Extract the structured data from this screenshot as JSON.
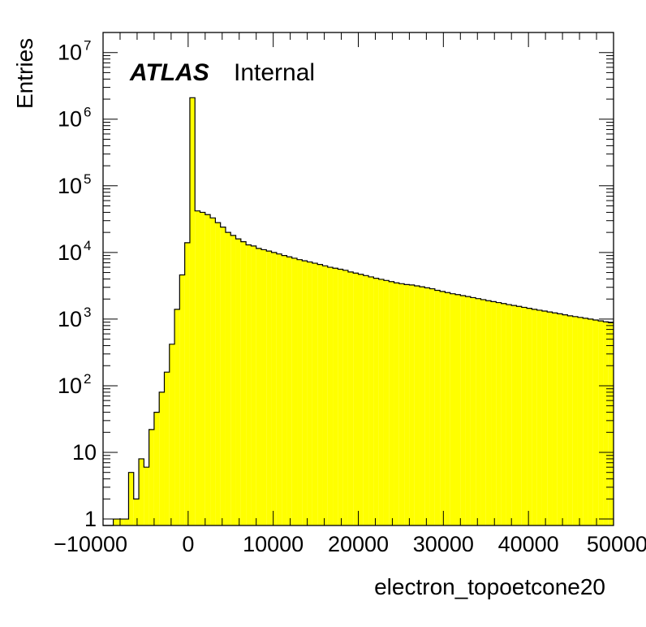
{
  "chart_data": {
    "type": "histogram",
    "log_y": true,
    "fill_color": "#ffff00",
    "line_color": "#000000",
    "xlabel": "electron_topoetcone20",
    "ylabel": "Entries",
    "label_bold": "ATLAS",
    "label_rest": "Internal",
    "xlim": [
      -10000,
      50000
    ],
    "ylim": [
      0.8,
      20000000
    ],
    "x_ticks": [
      {
        "value": -10000,
        "label": "−10000"
      },
      {
        "value": 0,
        "label": "0"
      },
      {
        "value": 10000,
        "label": "10000"
      },
      {
        "value": 20000,
        "label": "20000"
      },
      {
        "value": 30000,
        "label": "30000"
      },
      {
        "value": 40000,
        "label": "40000"
      },
      {
        "value": 50000,
        "label": "50000"
      }
    ],
    "y_ticks": [
      {
        "value": 1,
        "base": "1",
        "exp": ""
      },
      {
        "value": 10,
        "base": "10",
        "exp": ""
      },
      {
        "value": 100,
        "base": "10",
        "exp": "2"
      },
      {
        "value": 1000,
        "base": "10",
        "exp": "3"
      },
      {
        "value": 10000,
        "base": "10",
        "exp": "4"
      },
      {
        "value": 100000,
        "base": "10",
        "exp": "5"
      },
      {
        "value": 1000000,
        "base": "10",
        "exp": "6"
      },
      {
        "value": 10000000,
        "base": "10",
        "exp": "7"
      }
    ],
    "bin_edges_start": -10000,
    "bin_width": 600,
    "values": [
      0,
      0,
      1,
      1,
      1,
      5,
      2,
      8,
      6,
      22,
      40,
      80,
      160,
      420,
      1400,
      4600,
      14000,
      2100000,
      42000,
      40000,
      37000,
      33000,
      28000,
      24000,
      20000,
      18000,
      16000,
      14500,
      13000,
      12500,
      11500,
      11000,
      10500,
      10000,
      9500,
      9000,
      8600,
      8200,
      7800,
      7500,
      7200,
      6900,
      6600,
      6300,
      6000,
      5800,
      5600,
      5400,
      5100,
      4900,
      4700,
      4500,
      4300,
      4100,
      3950,
      3800,
      3650,
      3500,
      3400,
      3300,
      3250,
      3150,
      3050,
      2950,
      2850,
      2700,
      2600,
      2500,
      2400,
      2330,
      2250,
      2180,
      2100,
      2030,
      1960,
      1890,
      1830,
      1770,
      1710,
      1650,
      1600,
      1550,
      1500,
      1450,
      1400,
      1360,
      1320,
      1280,
      1240,
      1200,
      1160,
      1120,
      1090,
      1060,
      1030,
      1000,
      970,
      940,
      910,
      880
    ]
  }
}
